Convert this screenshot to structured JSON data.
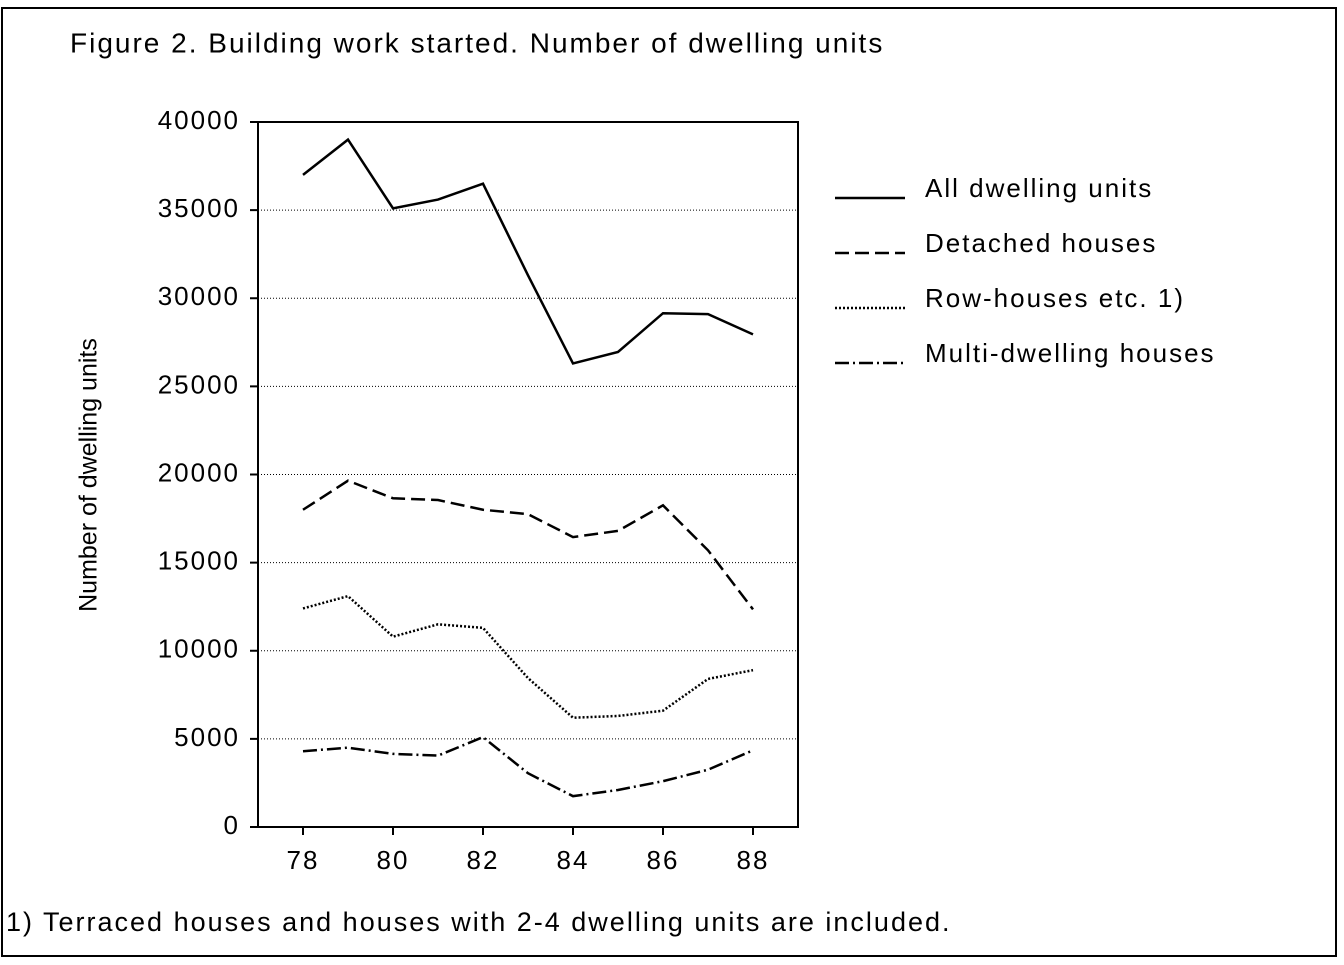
{
  "chart_data": {
    "type": "line",
    "title": "Figure 2. Building work started. Number of dwelling units",
    "y_label": "Number of dwelling units",
    "footnote": "1) Terraced houses and houses with 2-4 dwelling units are included.",
    "x": [
      78,
      79,
      80,
      81,
      82,
      83,
      84,
      85,
      86,
      87,
      88
    ],
    "series": [
      {
        "name": "All dwelling units",
        "color": "#000000",
        "dash": "none",
        "values": [
          37000,
          39000,
          35100,
          35600,
          36500,
          31300,
          26300,
          26950,
          29150,
          29100,
          27950
        ]
      },
      {
        "name": "Detached houses",
        "color": "#000000",
        "dash": "14 6",
        "values": [
          18000,
          19650,
          18650,
          18550,
          18000,
          17750,
          16450,
          16800,
          18250,
          15700,
          12350
        ]
      },
      {
        "name": "Row-houses etc. 1)",
        "color": "#000000",
        "dash": "2 2",
        "values": [
          12400,
          13100,
          10800,
          11500,
          11300,
          8450,
          6200,
          6300,
          6600,
          8400,
          8900
        ]
      },
      {
        "name": "Multi-dwelling houses",
        "color": "#000000",
        "dash": "14 4 2 4",
        "values": [
          4300,
          4500,
          4150,
          4050,
          5100,
          3050,
          1750,
          2100,
          2600,
          3250,
          4350
        ]
      }
    ],
    "xlim": [
      77,
      89
    ],
    "xticks": [
      78,
      80,
      82,
      84,
      86,
      88
    ],
    "ylim": [
      0,
      40000
    ],
    "yticks": [
      0,
      5000,
      10000,
      15000,
      20000,
      25000,
      30000,
      35000,
      40000
    ],
    "grid": true,
    "legend": "right"
  }
}
